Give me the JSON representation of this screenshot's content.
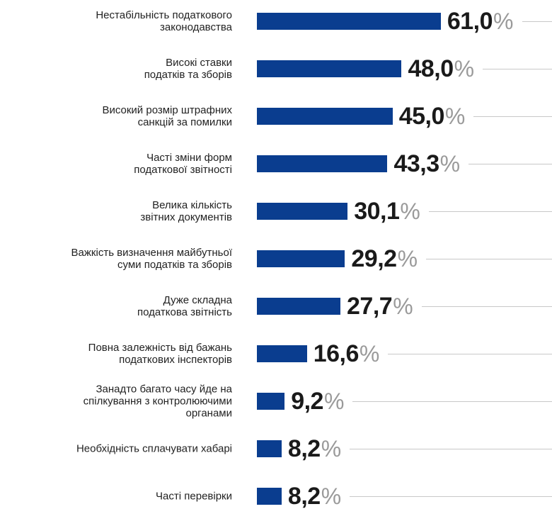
{
  "chart_data": {
    "type": "bar",
    "orientation": "horizontal",
    "categories": [
      "Нестабільність податкового\nзаконодавства",
      "Високі ставки\nподатків та зборів",
      "Високий розмір штрафних\nсанкцій за помилки",
      "Часті зміни форм\nподаткової звітності",
      "Велика кількість\nзвітних документів",
      "Важкість визначення майбутньої\nсуми податків та зборів",
      "Дуже складна\nподаткова звітність",
      "Повна залежність від бажань\nподаткових інспекторів",
      "Занадто багато часу йде на\nспілкування з контролюючими\nорганами",
      "Необхідність сплачувати хабарі",
      "Часті перевірки"
    ],
    "values": [
      61.0,
      48.0,
      45.0,
      43.3,
      30.1,
      29.2,
      27.7,
      16.6,
      9.2,
      8.2,
      8.2
    ],
    "value_labels": [
      "61,0",
      "48,0",
      "45,0",
      "43,3",
      "30,1",
      "29,2",
      "27,7",
      "16,6",
      "9,2",
      "8,2",
      "8,2"
    ],
    "value_label_unit": "%",
    "color": "#0a3d8f",
    "xlim": [
      0,
      100
    ]
  }
}
